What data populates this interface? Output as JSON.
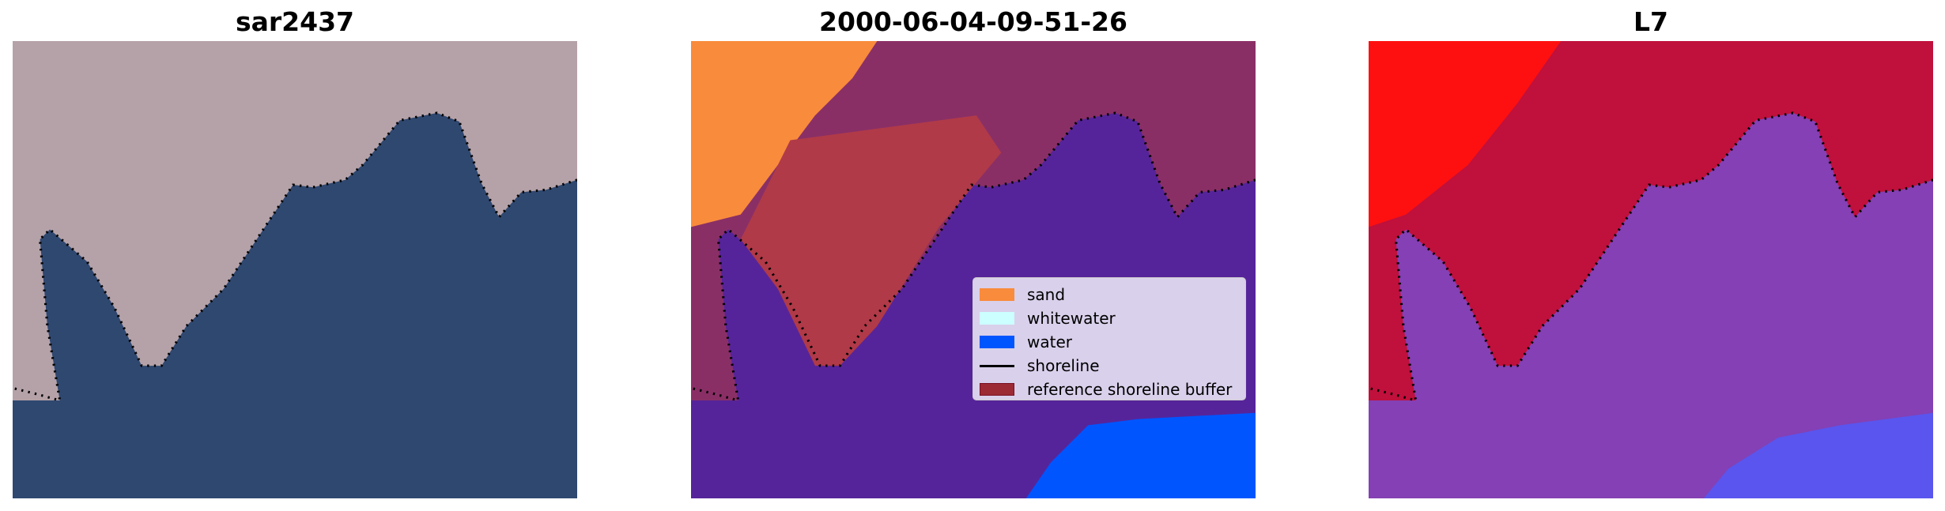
{
  "chart_data": [
    {
      "type": "image",
      "title": "sar2437",
      "colors": {
        "land": "#b5a2a8",
        "water": "#2f4870"
      }
    },
    {
      "type": "image",
      "title": "2000-06-04-09-51-26",
      "colors": {
        "background": "#56249a",
        "land": "#8a2f66",
        "sand": "#f98b3c",
        "water": "#0055ff"
      },
      "legend": {
        "placement": "center-right",
        "entries": [
          {
            "label": "sand",
            "color": "#f98b3c",
            "kind": "patch"
          },
          {
            "label": "whitewater",
            "color": "#ccffff",
            "kind": "patch"
          },
          {
            "label": "water",
            "color": "#0055ff",
            "kind": "patch"
          },
          {
            "label": "shoreline",
            "color": "#000000",
            "kind": "line"
          },
          {
            "label": "reference shoreline buffer",
            "color": "#9b2a35",
            "kind": "patch"
          }
        ]
      }
    },
    {
      "type": "image",
      "title": "L7",
      "colors": {
        "land": "#c0103c",
        "bright": "#ff1010",
        "water": "#8440b4",
        "deep": "#5a55ee"
      }
    }
  ]
}
